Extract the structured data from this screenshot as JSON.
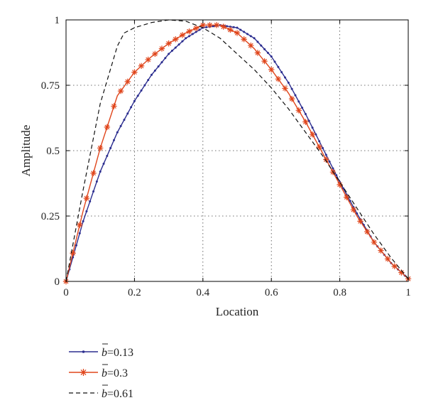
{
  "chart_data": {
    "type": "line",
    "title": "",
    "xlabel": "Location",
    "ylabel": "Amplitude",
    "xlim": [
      0,
      1
    ],
    "ylim": [
      0,
      1
    ],
    "xticks": [
      0,
      0.2,
      0.4,
      0.6,
      0.8,
      1
    ],
    "xtick_labels": [
      "0",
      "0.2",
      "0.4",
      "0.6",
      "0.8",
      "1"
    ],
    "yticks": [
      0,
      0.25,
      0.5,
      0.75,
      1
    ],
    "ytick_labels": [
      "0",
      "0.25",
      "0.5",
      "0.75",
      "1"
    ],
    "grid": true,
    "legend_position": "below",
    "series": [
      {
        "name": "b̄=0.13",
        "legend_prefix": "b",
        "legend_suffix": "=0.13",
        "color": "#2b2d8f",
        "style": "solid-dot",
        "x": [
          0,
          0.05,
          0.1,
          0.15,
          0.2,
          0.25,
          0.3,
          0.35,
          0.4,
          0.45,
          0.5,
          0.55,
          0.6,
          0.65,
          0.7,
          0.75,
          0.8,
          0.85,
          0.9,
          0.95,
          1.0
        ],
        "y": [
          0,
          0.23,
          0.42,
          0.57,
          0.69,
          0.79,
          0.87,
          0.93,
          0.97,
          0.98,
          0.97,
          0.93,
          0.86,
          0.76,
          0.64,
          0.51,
          0.38,
          0.26,
          0.15,
          0.07,
          0.01
        ]
      },
      {
        "name": "b̄=0.3",
        "legend_prefix": "b",
        "legend_suffix": "=0.3",
        "color": "#e0461c",
        "style": "solid-star",
        "x": [
          0,
          0.05,
          0.1,
          0.15,
          0.2,
          0.25,
          0.3,
          0.35,
          0.4,
          0.45,
          0.5,
          0.55,
          0.6,
          0.65,
          0.7,
          0.75,
          0.8,
          0.85,
          0.9,
          0.95,
          1.0
        ],
        "y": [
          0,
          0.27,
          0.51,
          0.71,
          0.8,
          0.86,
          0.91,
          0.95,
          0.98,
          0.98,
          0.95,
          0.89,
          0.81,
          0.72,
          0.61,
          0.49,
          0.37,
          0.25,
          0.15,
          0.07,
          0.01
        ]
      },
      {
        "name": "b̄=0.61",
        "legend_prefix": "b",
        "legend_suffix": "=0.61",
        "color": "#111111",
        "style": "dashed",
        "x": [
          0,
          0.05,
          0.1,
          0.15,
          0.17,
          0.2,
          0.25,
          0.3,
          0.35,
          0.4,
          0.45,
          0.5,
          0.55,
          0.6,
          0.65,
          0.7,
          0.75,
          0.8,
          0.85,
          0.9,
          0.95,
          1.0
        ],
        "y": [
          0,
          0.35,
          0.68,
          0.9,
          0.95,
          0.97,
          0.99,
          1.0,
          0.995,
          0.97,
          0.93,
          0.87,
          0.81,
          0.74,
          0.66,
          0.57,
          0.48,
          0.38,
          0.28,
          0.18,
          0.09,
          0.01
        ]
      }
    ]
  }
}
